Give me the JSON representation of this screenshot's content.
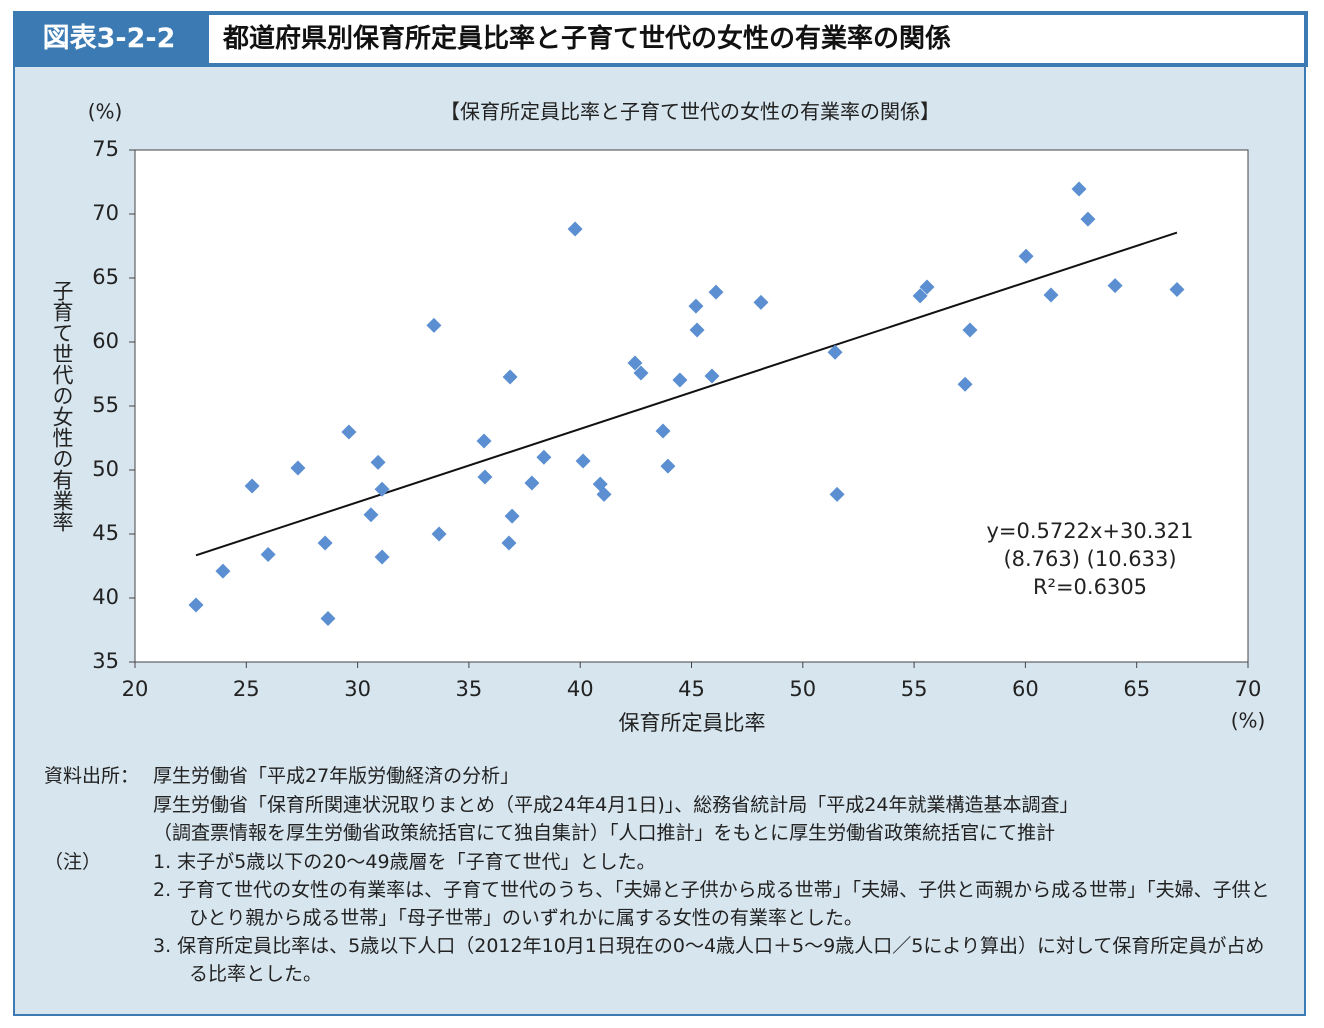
{
  "header": {
    "label": "図表3-2-2",
    "title": "都道府県別保育所定員比率と子育て世代の女性の有業率の関係"
  },
  "chart_data": {
    "type": "scatter",
    "title": "【保育所定員比率と子育て世代の女性の有業率の関係】",
    "x_label": "保育所定員比率",
    "y_label": "子育て世代の女性の有業率",
    "x_unit": "(%)",
    "y_unit": "(%)",
    "color": "#5b8fd1",
    "x": [
      22.74,
      23.95,
      25.26,
      25.98,
      27.32,
      28.54,
      28.67,
      29.61,
      30.6,
      30.92,
      31.1,
      31.1,
      33.43,
      33.66,
      35.68,
      35.72,
      36.85,
      36.94,
      36.8,
      37.83,
      38.37,
      39.77,
      40.13,
      40.9,
      41.07,
      42.46,
      42.73,
      43.72,
      43.94,
      44.48,
      45.2,
      45.25,
      45.92,
      46.1,
      48.12,
      51.45,
      51.54,
      55.27,
      55.58,
      57.29,
      57.51,
      60.03,
      61.15,
      62.41,
      62.81,
      64.03,
      66.81
    ],
    "values": [
      39.45,
      42.1,
      48.75,
      43.4,
      50.16,
      44.3,
      38.4,
      52.97,
      46.5,
      50.6,
      48.5,
      43.2,
      61.3,
      45.0,
      52.27,
      49.45,
      57.27,
      46.4,
      44.3,
      48.98,
      51.0,
      68.83,
      50.7,
      48.9,
      48.1,
      58.36,
      57.58,
      53.05,
      50.3,
      57.03,
      62.8,
      60.94,
      57.34,
      63.9,
      63.1,
      59.2,
      48.1,
      63.6,
      64.3,
      56.7,
      60.94,
      66.7,
      63.67,
      71.95,
      69.6,
      64.4,
      64.1
    ],
    "trendline": {
      "slope": 0.5722,
      "intercept": 30.321
    },
    "annotations": [
      "y=0.5722x+30.321",
      "(8.763)  (10.633)",
      "R²=0.6305"
    ],
    "xlim": [
      20,
      70
    ],
    "xticks": [
      20,
      25,
      30,
      35,
      40,
      45,
      50,
      55,
      60,
      65,
      70
    ],
    "ylim": [
      35,
      75
    ],
    "yticks": [
      35,
      40,
      45,
      50,
      55,
      60,
      65,
      70,
      75
    ],
    "grid": false
  },
  "notes": {
    "source_label": "資料出所：",
    "source_lines": [
      "厚生労働省「平成27年版労働経済の分析」",
      "厚生労働省「保育所関連状況取りまとめ（平成24年4月1日)」、総務省統計局「平成24年就業構造基本調査」",
      "（調査票情報を厚生労働省政策統括官にて独自集計）「人口推計」をもとに厚生労働省政策統括官にて推計"
    ],
    "note_label": "（注）",
    "items": [
      "1. 末子が5歳以下の20～49歳層を「子育て世代」とした。",
      "2. 子育て世代の女性の有業率は、子育て世代のうち、「夫婦と子供から成る世帯」「夫婦、子供と両親から成る世帯」「夫婦、子供とひとり親から成る世帯」「母子世帯」のいずれかに属する女性の有業率とした。",
      "3. 保育所定員比率は、5歳以下人口（2012年10月1日現在の0～4歳人口＋5～9歳人口／5により算出）に対して保育所定員が占める比率とした。"
    ]
  }
}
